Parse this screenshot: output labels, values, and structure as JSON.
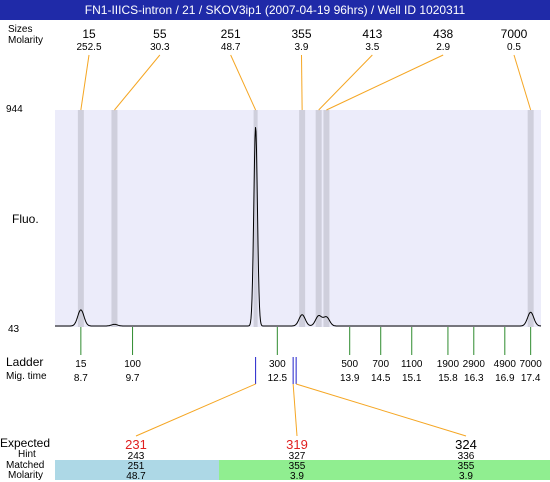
{
  "header": {
    "title": "FN1-IIICS-intron / 21 / SKOV3ip1 (2007-04-19 96hrs) / Well ID 1020311",
    "label_sizes": "Sizes",
    "label_molarity": "Molarity"
  },
  "peaks_top": [
    {
      "size": "15",
      "molarity": "252.5"
    },
    {
      "size": "55",
      "molarity": "30.3"
    },
    {
      "size": "251",
      "molarity": "48.7"
    },
    {
      "size": "355",
      "molarity": "3.9"
    },
    {
      "size": "413",
      "molarity": "3.5"
    },
    {
      "size": "438",
      "molarity": "2.9"
    },
    {
      "size": "7000",
      "molarity": "0.5"
    }
  ],
  "axis": {
    "y_max_label": "944",
    "y_min_label": "43",
    "y_title": "Fluo."
  },
  "ladder": {
    "label_ladder": "Ladder",
    "label_migtime": "Mig. time",
    "points": [
      {
        "size": "15",
        "time": "8.7"
      },
      {
        "size": "100",
        "time": "9.7"
      },
      {
        "size": "300",
        "time": "12.5"
      },
      {
        "size": "500",
        "time": "13.9"
      },
      {
        "size": "700",
        "time": "14.5"
      },
      {
        "size": "1100",
        "time": "15.1"
      },
      {
        "size": "1900",
        "time": "15.8"
      },
      {
        "size": "2900",
        "time": "16.3"
      },
      {
        "size": "4900",
        "time": "16.9"
      },
      {
        "size": "7000",
        "time": "17.4"
      }
    ]
  },
  "expected": {
    "label_expected": "Expected",
    "label_hint": "Hint",
    "label_matched": "Matched",
    "label_molarity": "Molarity",
    "columns": [
      {
        "expected": "231",
        "hint": "243",
        "matched": "251",
        "molarity": "48.7"
      },
      {
        "expected": "319",
        "hint": "327",
        "matched": "355",
        "molarity": "3.9"
      },
      {
        "expected": "324",
        "hint": "336",
        "matched": "355",
        "molarity": "3.9"
      }
    ]
  },
  "colors": {
    "title_bar": "#1f2aa8",
    "plot_bg": "#ececfa",
    "peak_band": "#cfcfdc",
    "connector": "#f5a623",
    "ladder_tick": "#2e8b2e",
    "expected_red": "#e02020",
    "matched_blue": "#add8e6",
    "matched_green": "#90ee90",
    "marker_blue": "#2222cc"
  },
  "chart_data": {
    "type": "line",
    "title": "FN1-IIICS-intron / 21 / SKOV3ip1 (2007-04-19 96hrs) / Well ID 1020311",
    "xlabel": "Mig. time",
    "ylabel": "Fluo.",
    "ylim": [
      43,
      944
    ],
    "xlim": [
      8.2,
      17.6
    ],
    "grid": false,
    "peaks": [
      {
        "size": 15,
        "molarity": 252.5,
        "time": 8.7,
        "height": 110
      },
      {
        "size": 55,
        "molarity": 30.3,
        "time": 9.35,
        "height": 50
      },
      {
        "size": 251,
        "molarity": 48.7,
        "time": 12.08,
        "height": 870
      },
      {
        "size": 355,
        "molarity": 3.9,
        "time": 12.98,
        "height": 90
      },
      {
        "size": 413,
        "molarity": 3.5,
        "time": 13.3,
        "height": 85
      },
      {
        "size": 438,
        "molarity": 2.9,
        "time": 13.45,
        "height": 80
      },
      {
        "size": 7000,
        "molarity": 0.5,
        "time": 17.4,
        "height": 100
      }
    ],
    "ladder_times": [
      8.7,
      9.7,
      12.5,
      13.9,
      14.5,
      15.1,
      15.8,
      16.3,
      16.9,
      17.4
    ]
  }
}
